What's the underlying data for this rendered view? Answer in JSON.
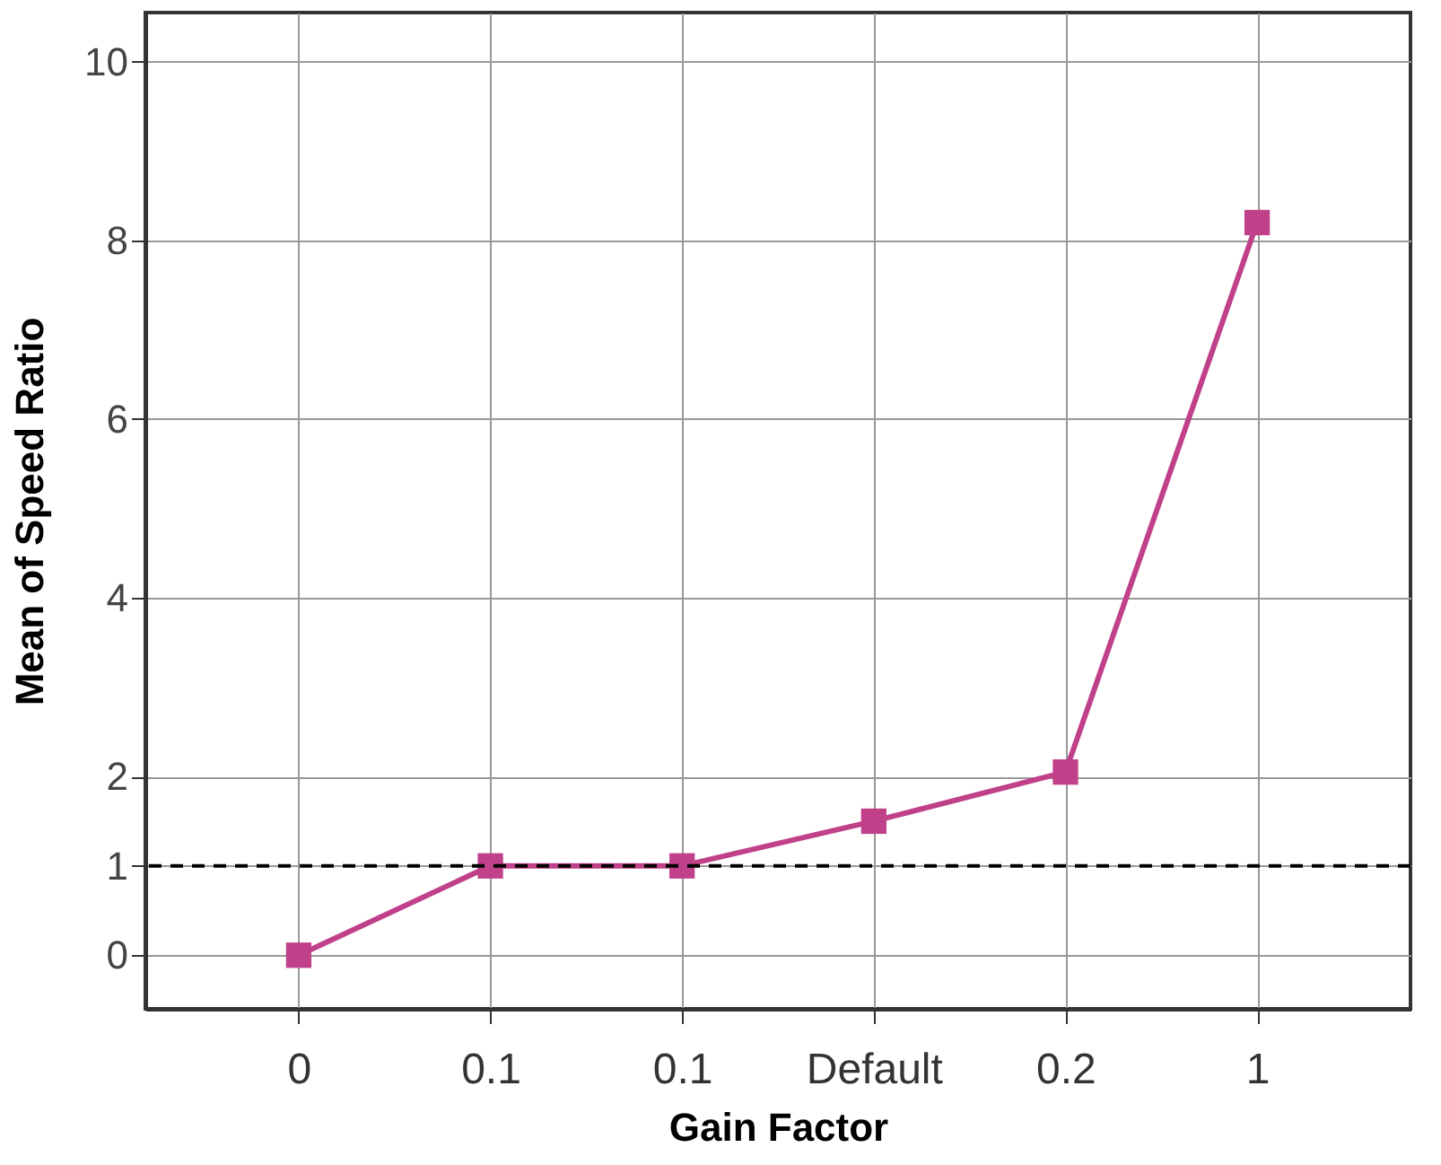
{
  "chart_data": {
    "type": "line",
    "xlabel": "Gain Factor",
    "ylabel": "Mean of Speed Ratio",
    "categories": [
      "0",
      "0.1",
      "0.1",
      "Default",
      "0.2",
      "1"
    ],
    "series": [
      {
        "color": "#c0418a",
        "values": [
          0,
          1.0,
          1.0,
          1.5,
          2.05,
          8.2
        ]
      }
    ],
    "ylim": [
      -0.6,
      10.55
    ],
    "yticks": [
      0,
      1,
      2,
      4,
      6,
      8,
      10
    ],
    "grid": true,
    "marker": "square",
    "line_style": "solid",
    "ref_lines": [
      {
        "axis": "y",
        "value": 1,
        "color": "#000000",
        "line_style": "dashed"
      }
    ]
  }
}
